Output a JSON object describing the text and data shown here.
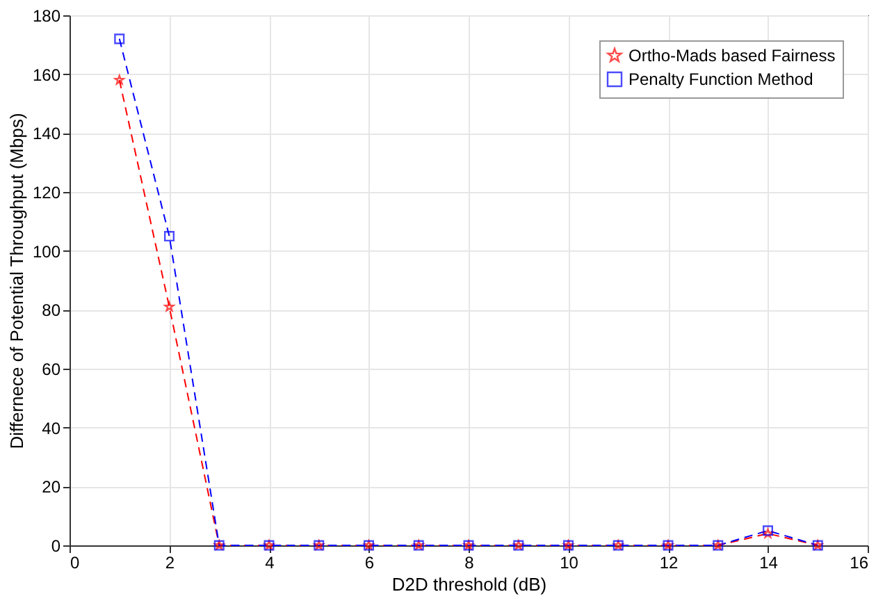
{
  "chart_data": {
    "type": "line",
    "xlabel": "D2D threshold (dB)",
    "ylabel": "Differnece of Potential Throughput (Mbps)",
    "x": [
      1,
      2,
      3,
      4,
      5,
      6,
      7,
      8,
      9,
      10,
      11,
      12,
      13,
      14,
      15
    ],
    "series": [
      {
        "name": "Ortho-Mads based Fairness",
        "color": "#ff0000",
        "marker": "star",
        "line_style": "dashed",
        "values": [
          158,
          81,
          0,
          0,
          0,
          0,
          0,
          0,
          0,
          0,
          0,
          0,
          0,
          4,
          0
        ]
      },
      {
        "name": "Penalty Function Method",
        "color": "#0000ff",
        "marker": "square",
        "line_style": "dashed",
        "values": [
          172,
          105,
          0,
          0,
          0,
          0,
          0,
          0,
          0,
          0,
          0,
          0,
          0,
          5,
          0
        ]
      }
    ],
    "xlim": [
      0,
      16
    ],
    "xticks": [
      0,
      2,
      4,
      6,
      8,
      10,
      12,
      14,
      16
    ],
    "ylim": [
      0,
      180
    ],
    "yticks": [
      0,
      20,
      40,
      60,
      80,
      100,
      120,
      140,
      160,
      180
    ],
    "grid": true,
    "legend": "top right"
  }
}
